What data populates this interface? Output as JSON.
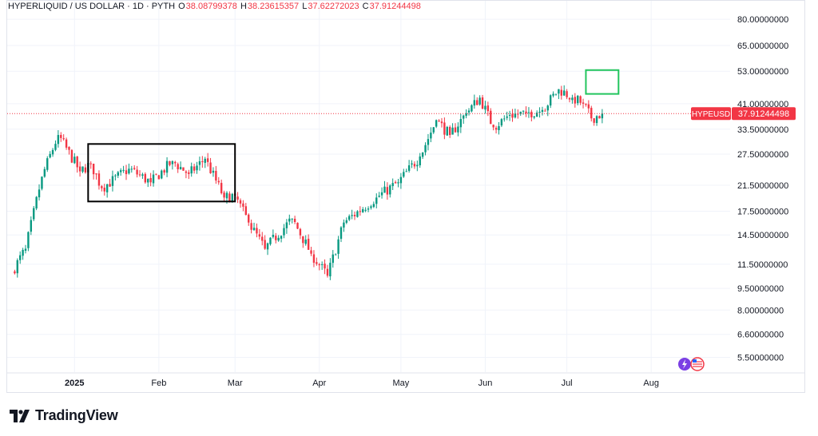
{
  "legend": {
    "title": "HYPERLIQUID / US DOLLAR · 1D · PYTH",
    "open_label": "O",
    "open": "38.08799378",
    "high_label": "H",
    "high": "38.23615357",
    "low_label": "L",
    "low": "37.62272023",
    "close_label": "C",
    "close": "37.91244498"
  },
  "price_tag": {
    "symbol": "HYPEUSD",
    "value": "37.91244498"
  },
  "brand": {
    "name": "TradingView"
  },
  "colors": {
    "up": "#089981",
    "down": "#f23645",
    "highlight_box": "#22c55e",
    "grid": "#f0f3fa"
  },
  "badges": [
    "lightning-icon",
    "us-flag-icon"
  ],
  "chart_data": {
    "type": "candlestick",
    "y_scale": "log",
    "ylim": [
      5.0,
      90.0
    ],
    "x_tick_labels": [
      "2025",
      "Feb",
      "Mar",
      "Apr",
      "May",
      "Jun",
      "Jul",
      "Aug"
    ],
    "y_tick_labels": [
      "80.00000000",
      "65.00000000",
      "53.00000000",
      "41.00000000",
      "33.50000000",
      "27.50000000",
      "21.50000000",
      "17.50000000",
      "14.50000000",
      "11.50000000",
      "9.50000000",
      "8.00000000",
      "6.60000000",
      "5.50000000"
    ],
    "last_close": 37.91244498,
    "series": [
      {
        "start": "Dec 10",
        "segments": [
          {
            "to": 13.0,
            "days": 5
          },
          {
            "to": 23.0,
            "days": 6
          },
          {
            "to": 32.0,
            "days": 6
          },
          {
            "to": 24.0,
            "days": 8
          },
          {
            "to": 25.5,
            "days": 4
          },
          {
            "to": 21.0,
            "days": 4
          },
          {
            "to": 24.5,
            "days": 10
          },
          {
            "to": 22.0,
            "days": 8
          },
          {
            "to": 26.0,
            "days": 8
          },
          {
            "to": 23.5,
            "days": 6
          },
          {
            "to": 26.5,
            "days": 6
          },
          {
            "to": 19.5,
            "days": 7
          },
          {
            "to": 19.8,
            "days": 4
          },
          {
            "to": 16.0,
            "days": 5
          },
          {
            "to": 13.0,
            "days": 6
          },
          {
            "to": 16.5,
            "days": 10
          },
          {
            "to": 12.5,
            "days": 7
          },
          {
            "to": 10.5,
            "days": 6
          },
          {
            "to": 16.0,
            "days": 6
          },
          {
            "to": 19.5,
            "days": 12
          },
          {
            "to": 22.0,
            "days": 8
          },
          {
            "to": 27.0,
            "days": 8
          },
          {
            "to": 36.0,
            "days": 6
          },
          {
            "to": 32.0,
            "days": 5
          },
          {
            "to": 38.0,
            "days": 6
          },
          {
            "to": 43.0,
            "days": 5
          },
          {
            "to": 34.0,
            "days": 5
          },
          {
            "to": 37.5,
            "days": 6
          },
          {
            "to": 38.0,
            "days": 6
          },
          {
            "to": 39.0,
            "days": 6
          },
          {
            "to": 46.0,
            "days": 6
          },
          {
            "to": 43.0,
            "days": 5
          },
          {
            "to": 41.0,
            "days": 4
          },
          {
            "to": 36.5,
            "days": 3
          },
          {
            "to": 37.91,
            "days": 4
          }
        ]
      }
    ],
    "annotations": [
      {
        "type": "rectangle",
        "from": "Jan 6",
        "to": "Mar 1",
        "price_from": 18.9,
        "price_to": 29.8,
        "color": "#000000"
      },
      {
        "type": "rectangle",
        "from": "Jul 8",
        "to": "Jul 20",
        "price_from": 44.3,
        "price_to": 53.5,
        "color": "#22c55e"
      }
    ]
  }
}
